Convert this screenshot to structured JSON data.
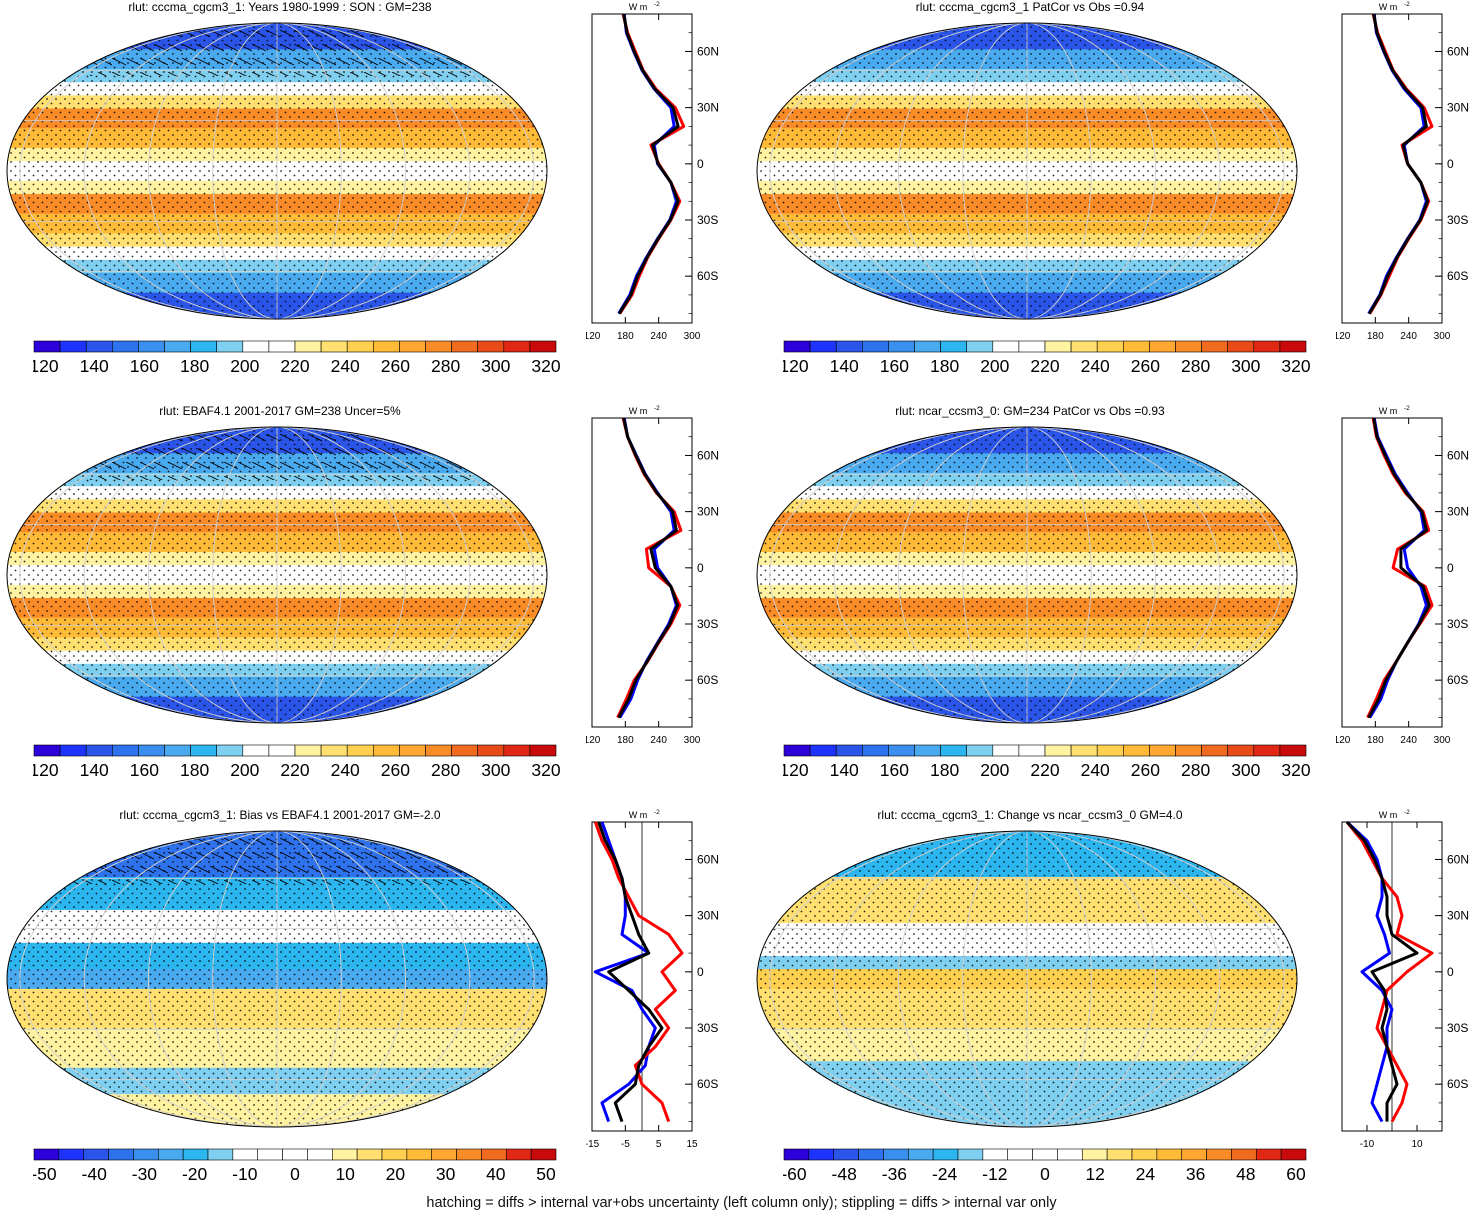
{
  "footnote": "hatching = diffs > internal var+obs uncertainty (left column only); stippling = diffs > internal var only",
  "colors": {
    "abs_palette": [
      "#2c00d8",
      "#1f33ff",
      "#2a55e8",
      "#2e72ee",
      "#3b8fee",
      "#4aaaf0",
      "#2cb6f0",
      "#7fd0f0",
      "#ffffff",
      "#ffffff",
      "#fff2a0",
      "#ffe070",
      "#ffcf50",
      "#ffbb38",
      "#ffa730",
      "#fa8c28",
      "#f06a20",
      "#e84a18",
      "#e02814",
      "#c80a0a"
    ],
    "diff_palette": [
      "#2c00d8",
      "#1f33ff",
      "#2a55e8",
      "#2e72ee",
      "#3b8fee",
      "#4aaaf0",
      "#2cb6f0",
      "#7fd0f0",
      "#ffffff",
      "#ffffff",
      "#ffffff",
      "#ffffff",
      "#fff2a0",
      "#ffe070",
      "#ffcf50",
      "#ffbb38",
      "#ffa730",
      "#fa8c28",
      "#f06a20",
      "#e02814",
      "#c80a0a"
    ],
    "obs_line": "#0000ff",
    "model_line": "#ff0000",
    "combined_line": "#000000"
  },
  "profile_lat_labels": [
    "60N",
    "30N",
    "0",
    "30S",
    "60S"
  ],
  "profile_unit": "W m",
  "profile_unit_exp": "-2",
  "chart_data": [
    {
      "type": "heatmap",
      "title": "rlut: cccma_cgcm3_1: Years 1980-1999 : SON : GM=238",
      "colorbar_ticks": [
        "120",
        "140",
        "160",
        "180",
        "200",
        "220",
        "240",
        "260",
        "280",
        "300",
        "320"
      ],
      "colorbar_kind": "abs",
      "profile_xticks": [
        "120",
        "180",
        "240",
        "300"
      ],
      "profile_xlim": [
        120,
        300
      ],
      "zonal_profile": {
        "lat": [
          80,
          70,
          60,
          50,
          40,
          30,
          20,
          10,
          0,
          -10,
          -20,
          -30,
          -40,
          -50,
          -60,
          -70,
          -80
        ],
        "obs": [
          178,
          182,
          195,
          210,
          232,
          262,
          268,
          232,
          238,
          262,
          272,
          260,
          238,
          218,
          200,
          188,
          168
        ],
        "model": [
          176,
          184,
          198,
          212,
          235,
          270,
          285,
          226,
          240,
          262,
          278,
          262,
          240,
          220,
          205,
          192,
          170
        ],
        "mean": [
          177,
          183,
          196,
          211,
          233,
          266,
          275,
          229,
          239,
          262,
          275,
          261,
          239,
          219,
          202,
          190,
          169
        ]
      }
    },
    {
      "type": "heatmap",
      "title": "rlut: cccma_cgcm3_1 PatCor vs Obs =0.94",
      "colorbar_ticks": [
        "120",
        "140",
        "160",
        "180",
        "200",
        "220",
        "240",
        "260",
        "280",
        "300",
        "320"
      ],
      "colorbar_kind": "abs",
      "profile_xticks": [
        "120",
        "180",
        "240",
        "300"
      ],
      "profile_xlim": [
        120,
        300
      ],
      "zonal_profile": {
        "lat": [
          80,
          70,
          60,
          50,
          40,
          30,
          20,
          10,
          0,
          -10,
          -20,
          -30,
          -40,
          -50,
          -60,
          -70,
          -80
        ],
        "obs": [
          178,
          182,
          195,
          210,
          232,
          262,
          268,
          232,
          238,
          262,
          272,
          260,
          238,
          218,
          200,
          188,
          168
        ],
        "model": [
          176,
          184,
          198,
          212,
          236,
          268,
          282,
          228,
          238,
          262,
          276,
          262,
          240,
          220,
          205,
          190,
          170
        ],
        "mean": [
          177,
          183,
          196,
          211,
          234,
          265,
          272,
          230,
          238,
          262,
          274,
          261,
          239,
          219,
          202,
          189,
          169
        ]
      }
    },
    {
      "type": "heatmap",
      "title": "rlut: EBAF4.1 2001-2017 GM=238 Uncer=5%",
      "colorbar_ticks": [
        "120",
        "140",
        "160",
        "180",
        "200",
        "220",
        "240",
        "260",
        "280",
        "300",
        "320"
      ],
      "colorbar_kind": "abs",
      "profile_xticks": [
        "120",
        "180",
        "240",
        "300"
      ],
      "profile_xlim": [
        120,
        300
      ],
      "zonal_profile": {
        "lat": [
          80,
          70,
          60,
          50,
          40,
          30,
          20,
          10,
          0,
          -10,
          -20,
          -30,
          -40,
          -50,
          -60,
          -70,
          -80
        ],
        "obs": [
          178,
          184,
          200,
          216,
          238,
          262,
          268,
          232,
          238,
          262,
          272,
          258,
          238,
          218,
          202,
          190,
          170
        ],
        "model": [
          176,
          184,
          198,
          214,
          236,
          268,
          280,
          218,
          222,
          262,
          278,
          262,
          240,
          220,
          196,
          182,
          166
        ],
        "mean": [
          177,
          184,
          199,
          215,
          237,
          265,
          272,
          226,
          234,
          262,
          274,
          260,
          239,
          219,
          199,
          186,
          168
        ]
      }
    },
    {
      "type": "heatmap",
      "title": "rlut: ncar_ccsm3_0: GM=234 PatCor vs Obs =0.93",
      "colorbar_ticks": [
        "120",
        "140",
        "160",
        "180",
        "200",
        "220",
        "240",
        "260",
        "280",
        "300",
        "320"
      ],
      "colorbar_kind": "abs",
      "profile_xticks": [
        "120",
        "180",
        "240",
        "300"
      ],
      "profile_xlim": [
        120,
        300
      ],
      "zonal_profile": {
        "lat": [
          80,
          70,
          60,
          50,
          40,
          30,
          20,
          10,
          0,
          -10,
          -20,
          -30,
          -40,
          -50,
          -60,
          -70,
          -80
        ],
        "obs": [
          178,
          184,
          200,
          216,
          238,
          262,
          268,
          232,
          238,
          262,
          272,
          258,
          238,
          218,
          202,
          190,
          170
        ],
        "model": [
          176,
          182,
          196,
          212,
          234,
          266,
          276,
          220,
          212,
          270,
          282,
          260,
          238,
          218,
          196,
          182,
          166
        ],
        "mean": [
          177,
          183,
          198,
          214,
          236,
          264,
          272,
          226,
          226,
          266,
          277,
          259,
          238,
          218,
          199,
          186,
          168
        ]
      }
    },
    {
      "type": "heatmap",
      "title": "rlut: cccma_cgcm3_1: Bias vs EBAF4.1 2001-2017  GM=-2.0",
      "colorbar_ticks": [
        "-50",
        "-40",
        "-30",
        "-20",
        "-10",
        "0",
        "10",
        "20",
        "30",
        "40",
        "50"
      ],
      "colorbar_kind": "diff",
      "profile_xticks": [
        "-15",
        "-5",
        "5",
        "15"
      ],
      "profile_xlim": [
        -15,
        15
      ],
      "zonal_profile": {
        "lat": [
          80,
          70,
          60,
          50,
          40,
          30,
          20,
          10,
          0,
          -10,
          -20,
          -30,
          -40,
          -50,
          -60,
          -70,
          -80
        ],
        "obs": [
          -12,
          -10,
          -8,
          -6,
          -5,
          -5,
          -6,
          2,
          -14,
          -3,
          0,
          4,
          2,
          1,
          -4,
          -12,
          -10
        ],
        "model": [
          -14,
          -12,
          -9,
          -7,
          -4,
          -1,
          8,
          12,
          6,
          10,
          4,
          8,
          4,
          -2,
          0,
          6,
          8
        ],
        "mean": [
          -13,
          -11,
          -8,
          -6,
          -5,
          -3,
          -1,
          2,
          -10,
          -4,
          2,
          6,
          2,
          -1,
          -2,
          -8,
          -6
        ]
      }
    },
    {
      "type": "heatmap",
      "title": "rlut: cccma_cgcm3_1: Change vs ncar_ccsm3_0 GM=4.0",
      "colorbar_ticks": [
        "-60",
        "-48",
        "-36",
        "-24",
        "-12",
        "0",
        "12",
        "24",
        "36",
        "48",
        "60"
      ],
      "colorbar_kind": "diff",
      "profile_xticks": [
        "-10",
        "10"
      ],
      "profile_xlim": [
        -20,
        20
      ],
      "zonal_profile": {
        "lat": [
          80,
          70,
          60,
          50,
          40,
          30,
          20,
          10,
          0,
          -10,
          -20,
          -30,
          -40,
          -50,
          -60,
          -70,
          -80
        ],
        "obs": [
          -18,
          -10,
          -6,
          -4,
          -4,
          -6,
          -3,
          -1,
          -12,
          -4,
          0,
          -2,
          -2,
          -4,
          -6,
          -8,
          -4
        ],
        "model": [
          -18,
          -12,
          -8,
          -4,
          2,
          4,
          2,
          16,
          6,
          -2,
          -4,
          -6,
          -2,
          2,
          6,
          4,
          0
        ],
        "mean": [
          -18,
          -11,
          -7,
          -4,
          -2,
          -2,
          0,
          10,
          -8,
          -3,
          -2,
          -4,
          -2,
          0,
          2,
          -2,
          -2
        ]
      }
    }
  ]
}
